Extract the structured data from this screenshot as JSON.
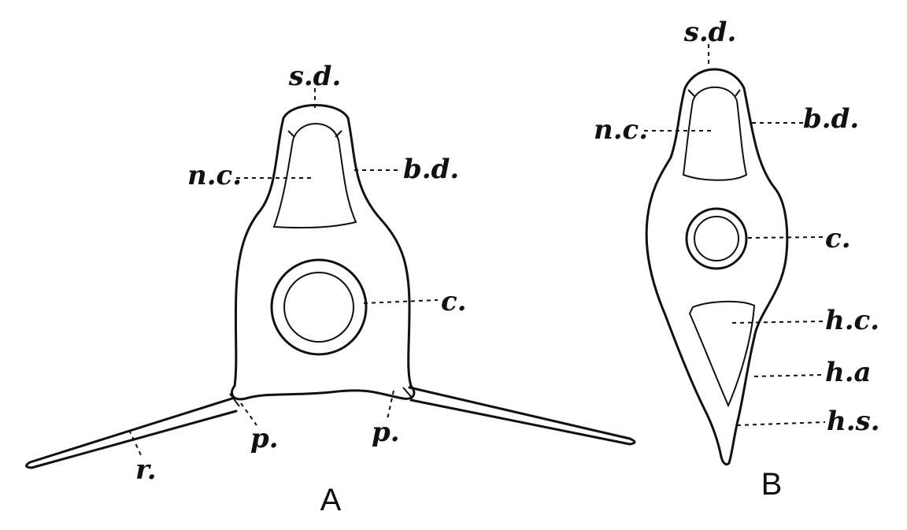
{
  "figure_A": {
    "labels": {
      "sd": "s.d.",
      "nc": "n.c.",
      "bd": "b.d.",
      "c": "c.",
      "p_left": "p.",
      "p_right": "p.",
      "r": "r."
    },
    "caption": "A"
  },
  "figure_B": {
    "labels": {
      "sd": "s.d.",
      "nc": "n.c.",
      "bd": "b.d.",
      "c": "c.",
      "hc": "h.c.",
      "ha": "h.a",
      "hs": "h.s."
    },
    "caption": "B"
  }
}
